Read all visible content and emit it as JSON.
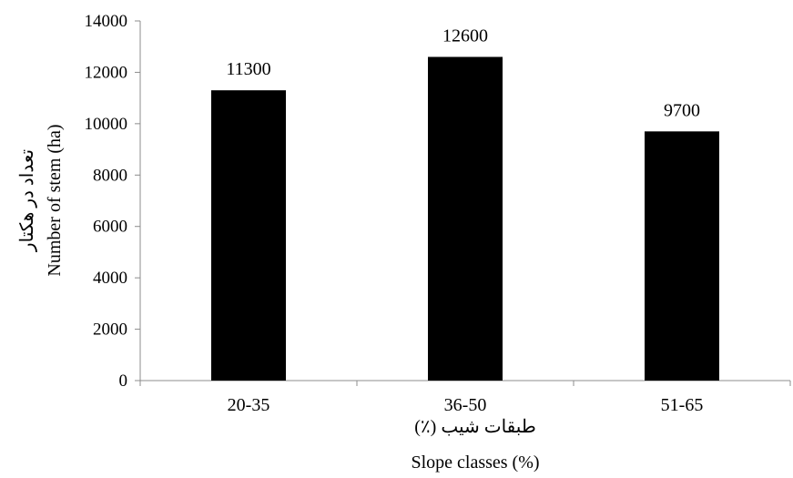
{
  "chart_data": {
    "type": "bar",
    "categories": [
      "20-35",
      "36-50",
      "51-65"
    ],
    "values": [
      11300,
      12600,
      9700
    ],
    "data_labels": [
      "11300",
      "12600",
      "9700"
    ],
    "ylim": [
      0,
      14000
    ],
    "yticks": [
      0,
      2000,
      4000,
      6000,
      8000,
      10000,
      12000,
      14000
    ],
    "xlabel_fa": "طبقات شیب (٪)",
    "xlabel_en": "Slope classes (%)",
    "ylabel_fa": "تعداد در هکتار",
    "ylabel_en": "Number of stem (ha)",
    "bar_color": "#000000",
    "grid": false,
    "legend": "none"
  }
}
